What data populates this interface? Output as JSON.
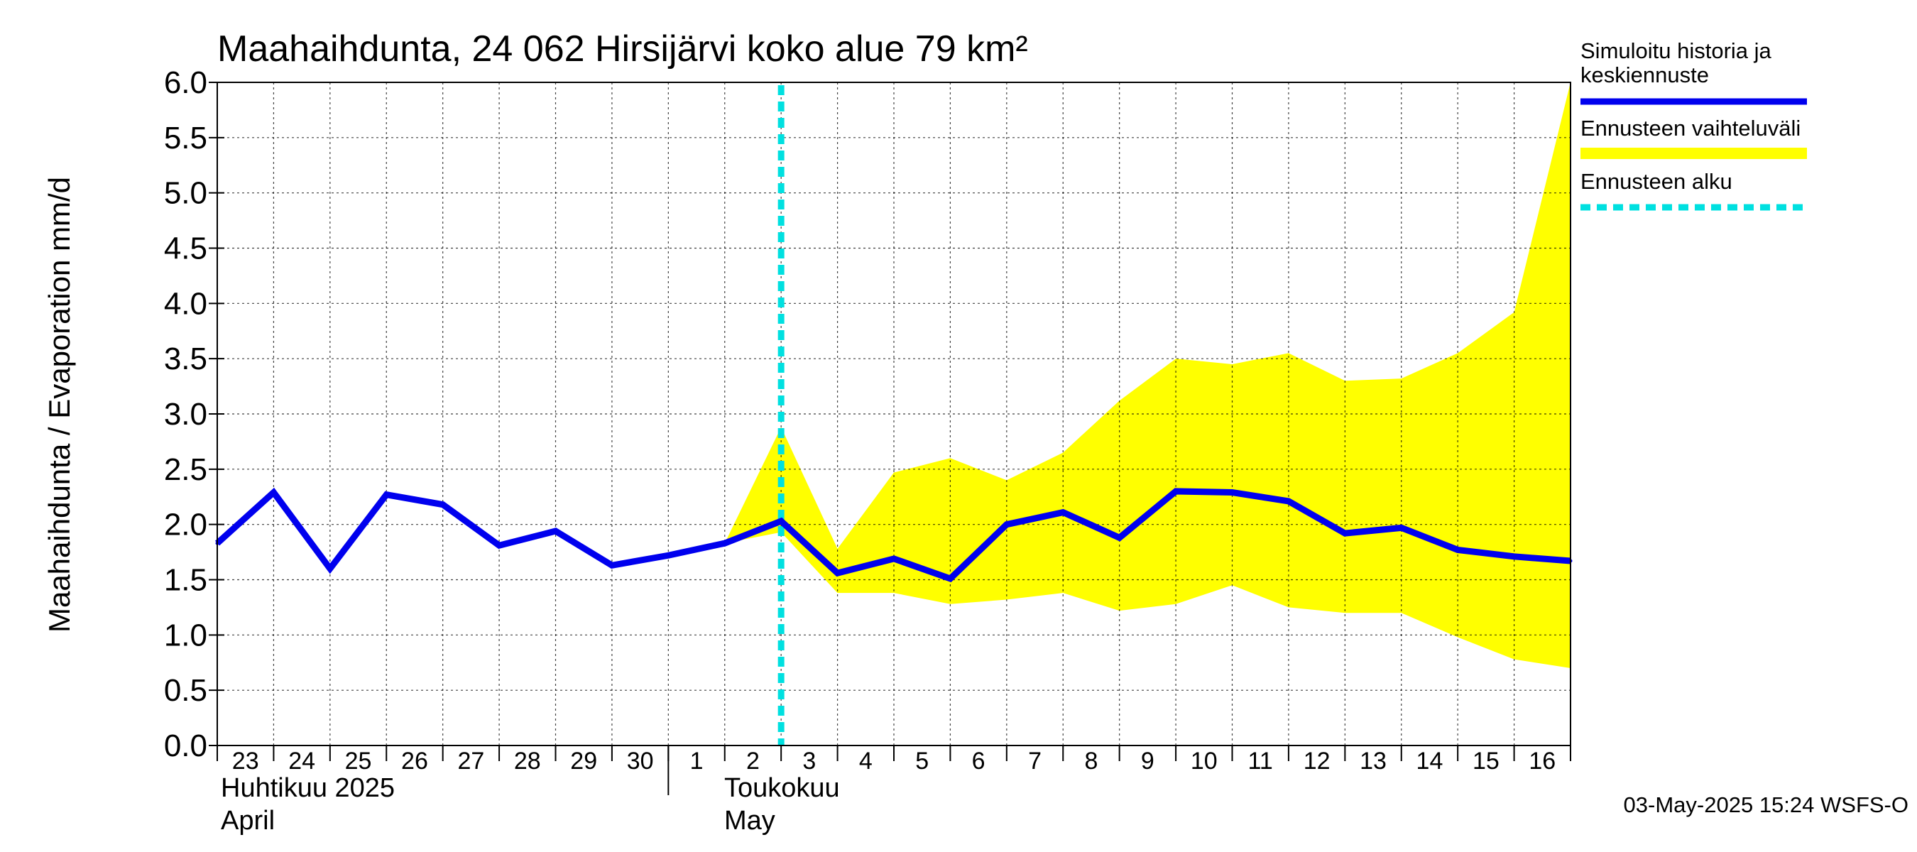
{
  "chart_data": {
    "type": "line",
    "title": "Maahaihdunta, 24 062 Hirsijärvi koko alue 79 km²",
    "ylabel": "Maahaihdunta / Evaporation   mm/d",
    "ylim": [
      0,
      6
    ],
    "yticks": [
      "0.0",
      "0.5",
      "1.0",
      "1.5",
      "2.0",
      "2.5",
      "3.0",
      "3.5",
      "4.0",
      "4.5",
      "5.0",
      "5.5",
      "6.0"
    ],
    "grid": true,
    "x_day_labels": [
      "23",
      "24",
      "25",
      "26",
      "27",
      "28",
      "29",
      "30",
      "1",
      "2",
      "3",
      "4",
      "5",
      "6",
      "7",
      "8",
      "9",
      "10",
      "11",
      "12",
      "13",
      "14",
      "15",
      "16"
    ],
    "x_dates": [
      "2025-04-23",
      "2025-04-24",
      "2025-04-25",
      "2025-04-26",
      "2025-04-27",
      "2025-04-28",
      "2025-04-29",
      "2025-04-30",
      "2025-05-01",
      "2025-05-02",
      "2025-05-03",
      "2025-05-04",
      "2025-05-05",
      "2025-05-06",
      "2025-05-07",
      "2025-05-08",
      "2025-05-09",
      "2025-05-10",
      "2025-05-11",
      "2025-05-12",
      "2025-05-13",
      "2025-05-14",
      "2025-05-15",
      "2025-05-16",
      "2025-05-17"
    ],
    "month_labels": [
      {
        "line1": "Huhtikuu  2025",
        "line2": "April"
      },
      {
        "line1": "Toukokuu",
        "line2": "May"
      }
    ],
    "series": [
      {
        "name": "Simuloitu historia ja keskiennuste",
        "color": "#0000ee",
        "x": [
          "2025-04-23",
          "2025-04-24",
          "2025-04-25",
          "2025-04-26",
          "2025-04-27",
          "2025-04-28",
          "2025-04-29",
          "2025-04-30",
          "2025-05-01",
          "2025-05-02",
          "2025-05-03",
          "2025-05-04",
          "2025-05-05",
          "2025-05-06",
          "2025-05-07",
          "2025-05-08",
          "2025-05-09",
          "2025-05-10",
          "2025-05-11",
          "2025-05-12",
          "2025-05-13",
          "2025-05-14",
          "2025-05-15",
          "2025-05-16",
          "2025-05-17"
        ],
        "values": [
          1.83,
          2.29,
          1.6,
          2.27,
          2.18,
          1.81,
          1.94,
          1.63,
          1.72,
          1.83,
          2.03,
          1.56,
          1.69,
          1.51,
          2.0,
          2.11,
          1.88,
          2.3,
          2.29,
          2.21,
          1.92,
          1.97,
          1.77,
          1.71,
          1.67
        ]
      }
    ],
    "band": {
      "name": "Ennusteen vaihteluväli",
      "color": "#ffff00",
      "x": [
        "2025-05-02",
        "2025-05-03",
        "2025-05-04",
        "2025-05-05",
        "2025-05-06",
        "2025-05-07",
        "2025-05-08",
        "2025-05-09",
        "2025-05-10",
        "2025-05-11",
        "2025-05-12",
        "2025-05-13",
        "2025-05-14",
        "2025-05-15",
        "2025-05-16",
        "2025-05-17"
      ],
      "upper": [
        1.83,
        2.88,
        1.78,
        2.47,
        2.6,
        2.4,
        2.65,
        3.12,
        3.5,
        3.45,
        3.55,
        3.3,
        3.32,
        3.55,
        3.92,
        6.0
      ],
      "lower": [
        1.83,
        1.93,
        1.38,
        1.38,
        1.28,
        1.32,
        1.38,
        1.22,
        1.28,
        1.45,
        1.25,
        1.2,
        1.2,
        0.98,
        0.78,
        0.7
      ]
    },
    "forecast_start": {
      "name": "Ennusteen alku",
      "x": "2025-05-03",
      "color": "#00e0e0"
    },
    "legend": {
      "position": "right",
      "items": [
        {
          "label_lines": [
            "Simuloitu historia ja",
            "keskiennuste"
          ],
          "color": "#0000ee",
          "style": "line"
        },
        {
          "label_lines": [
            "Ennusteen vaihteluväli"
          ],
          "color": "#ffff00",
          "style": "band"
        },
        {
          "label_lines": [
            "Ennusteen alku"
          ],
          "color": "#00e0e0",
          "style": "dashed"
        }
      ]
    },
    "footer": "03-May-2025 15:24 WSFS-O"
  }
}
